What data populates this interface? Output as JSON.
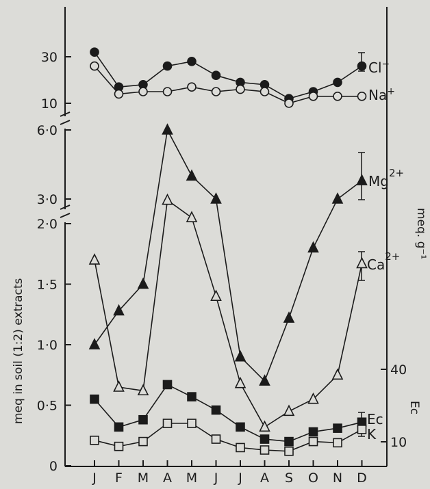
{
  "chart_data": {
    "type": "line",
    "categories": [
      "J",
      "F",
      "M",
      "A",
      "M",
      "J",
      "J",
      "A",
      "S",
      "O",
      "N",
      "D"
    ],
    "ylabel": "meq in soil (1:2) extracts",
    "y2label": "meq. g⁻¹",
    "y3label": "Ec",
    "panels": [
      {
        "name": "top",
        "ticks": [
          {
            "v": 10,
            "label": "10"
          },
          {
            "v": 30,
            "label": "30"
          }
        ],
        "series": [
          {
            "label": "Cl⁻",
            "marker": "filled-circle",
            "values": [
              32,
              17,
              18,
              26,
              28,
              22,
              19,
              18,
              12,
              15,
              19,
              26
            ]
          },
          {
            "label": "Na⁺",
            "marker": "open-circle",
            "values": [
              26,
              14,
              15,
              15,
              17,
              15,
              16,
              15,
              10,
              13,
              13,
              13
            ]
          }
        ]
      },
      {
        "name": "middle",
        "ticks": [
          {
            "v": 3.0,
            "label": "3·0"
          },
          {
            "v": 6.0,
            "label": "6·0"
          }
        ],
        "series": [
          {
            "label": "Mg2+",
            "marker": "filled-triangle",
            "values": [
              null,
              null,
              null,
              6.0,
              4.0,
              3.0,
              null,
              null,
              null,
              null,
              3.0,
              3.8
            ]
          },
          {
            "label": "Ca2+",
            "marker": "open-triangle",
            "values": [
              null,
              null,
              null,
              2.95,
              null,
              null,
              null,
              null,
              null,
              null,
              null,
              null
            ]
          }
        ]
      },
      {
        "name": "bottom",
        "ticks": [
          {
            "v": 0,
            "label": "0"
          },
          {
            "v": 0.5,
            "label": "0·5"
          },
          {
            "v": 1.0,
            "label": "1·0"
          },
          {
            "v": 1.5,
            "label": "1·5"
          },
          {
            "v": 2.0,
            "label": "2·0"
          }
        ],
        "series": [
          {
            "label": "Mg2+",
            "marker": "filled-triangle",
            "values": [
              1.0,
              1.28,
              1.5,
              null,
              null,
              null,
              0.9,
              0.7,
              1.22,
              1.8,
              null,
              null
            ]
          },
          {
            "label": "Ca2+",
            "marker": "open-triangle",
            "values": [
              1.7,
              0.65,
              0.62,
              null,
              2.05,
              1.4,
              0.68,
              0.32,
              0.45,
              0.55,
              0.75,
              1.67
            ]
          },
          {
            "label": "Ec",
            "marker": "filled-square",
            "values": [
              0.55,
              0.32,
              0.38,
              0.67,
              0.57,
              0.46,
              0.32,
              0.22,
              0.2,
              0.28,
              0.31,
              0.36
            ]
          },
          {
            "label": "K",
            "marker": "open-square",
            "values": [
              0.21,
              0.16,
              0.2,
              0.35,
              0.35,
              0.22,
              0.15,
              0.13,
              0.12,
              0.2,
              0.19,
              0.3
            ]
          }
        ]
      }
    ],
    "right_axis": {
      "ticks": [
        {
          "v": 10,
          "label": "10"
        },
        {
          "v": 40,
          "label": "40"
        }
      ]
    }
  },
  "series_labels": {
    "cl": {
      "base": "Cl",
      "sup": "−"
    },
    "na": {
      "base": "Na",
      "sup": "+"
    },
    "mg": {
      "base": "Mg",
      "sup": "2+"
    },
    "ca": {
      "base": "Ca",
      "sup": "2+"
    },
    "ec": {
      "base": "Ec",
      "sup": ""
    },
    "k": {
      "base": "K",
      "sup": ""
    }
  },
  "colors": {
    "background": "#dcdcd8",
    "ink": "#1b1b1b"
  }
}
